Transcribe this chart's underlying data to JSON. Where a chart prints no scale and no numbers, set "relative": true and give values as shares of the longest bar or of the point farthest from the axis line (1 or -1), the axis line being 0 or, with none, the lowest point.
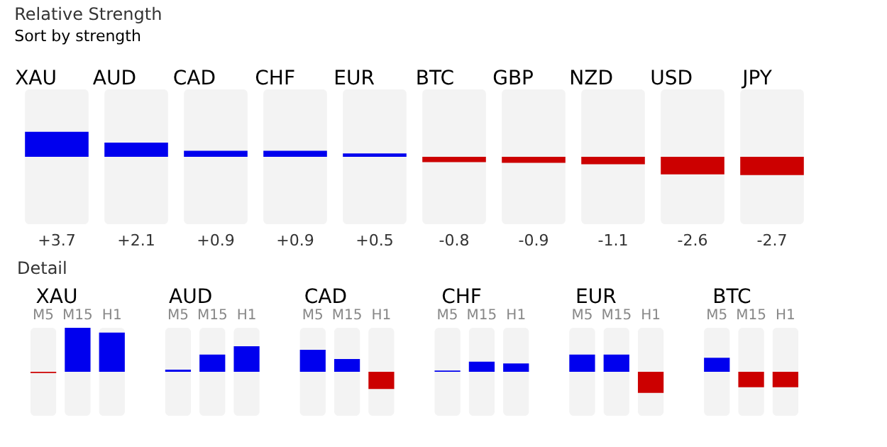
{
  "chart_data": [
    {
      "type": "bar",
      "title": "Relative Strength",
      "annotations": [
        "Sort by strength"
      ],
      "categories": [
        "XAU",
        "AUD",
        "CAD",
        "CHF",
        "EUR",
        "BTC",
        "GBP",
        "NZD",
        "USD",
        "JPY"
      ],
      "values": [
        3.7,
        2.1,
        0.9,
        0.9,
        0.5,
        -0.8,
        -0.9,
        -1.1,
        -2.6,
        -2.7
      ],
      "colors": [
        "#0000ee",
        "#0000ee",
        "#0000ee",
        "#0000ee",
        "#0000ee",
        "#cc0000",
        "#cc0000",
        "#cc0000",
        "#cc0000",
        "#cc0000"
      ],
      "value_labels": [
        "+3.7",
        "+2.1",
        "+0.9",
        "+0.9",
        "+0.5",
        "-0.8",
        "-0.9",
        "-1.1",
        "-2.6",
        "-2.7"
      ],
      "ylim": [
        -10,
        10
      ],
      "tick_labels": "x",
      "grid": false
    },
    {
      "type": "bar",
      "title": "Detail",
      "relative": true,
      "categories": [
        "XAU",
        "AUD",
        "CAD",
        "CHF",
        "EUR",
        "BTC"
      ],
      "grid": false,
      "series": [
        {
          "name": "M5",
          "values": [
            -0.03,
            0.05,
            0.5,
            0.03,
            0.39,
            0.32
          ],
          "colors": [
            "#cc0000",
            "#0000ee",
            "#0000ee",
            "#0000ee",
            "#0000ee",
            "#0000ee"
          ]
        },
        {
          "name": "M15",
          "values": [
            1,
            0.39,
            0.29,
            0.23,
            0.39,
            -0.35
          ],
          "colors": [
            "#0000ee",
            "#0000ee",
            "#0000ee",
            "#0000ee",
            "#0000ee",
            "#cc0000"
          ]
        },
        {
          "name": "H1",
          "values": [
            0.89,
            0.58,
            -0.39,
            0.19,
            -0.48,
            -0.35
          ],
          "colors": [
            "#0000ee",
            "#0000ee",
            "#cc0000",
            "#0000ee",
            "#cc0000",
            "#cc0000"
          ]
        }
      ]
    }
  ]
}
